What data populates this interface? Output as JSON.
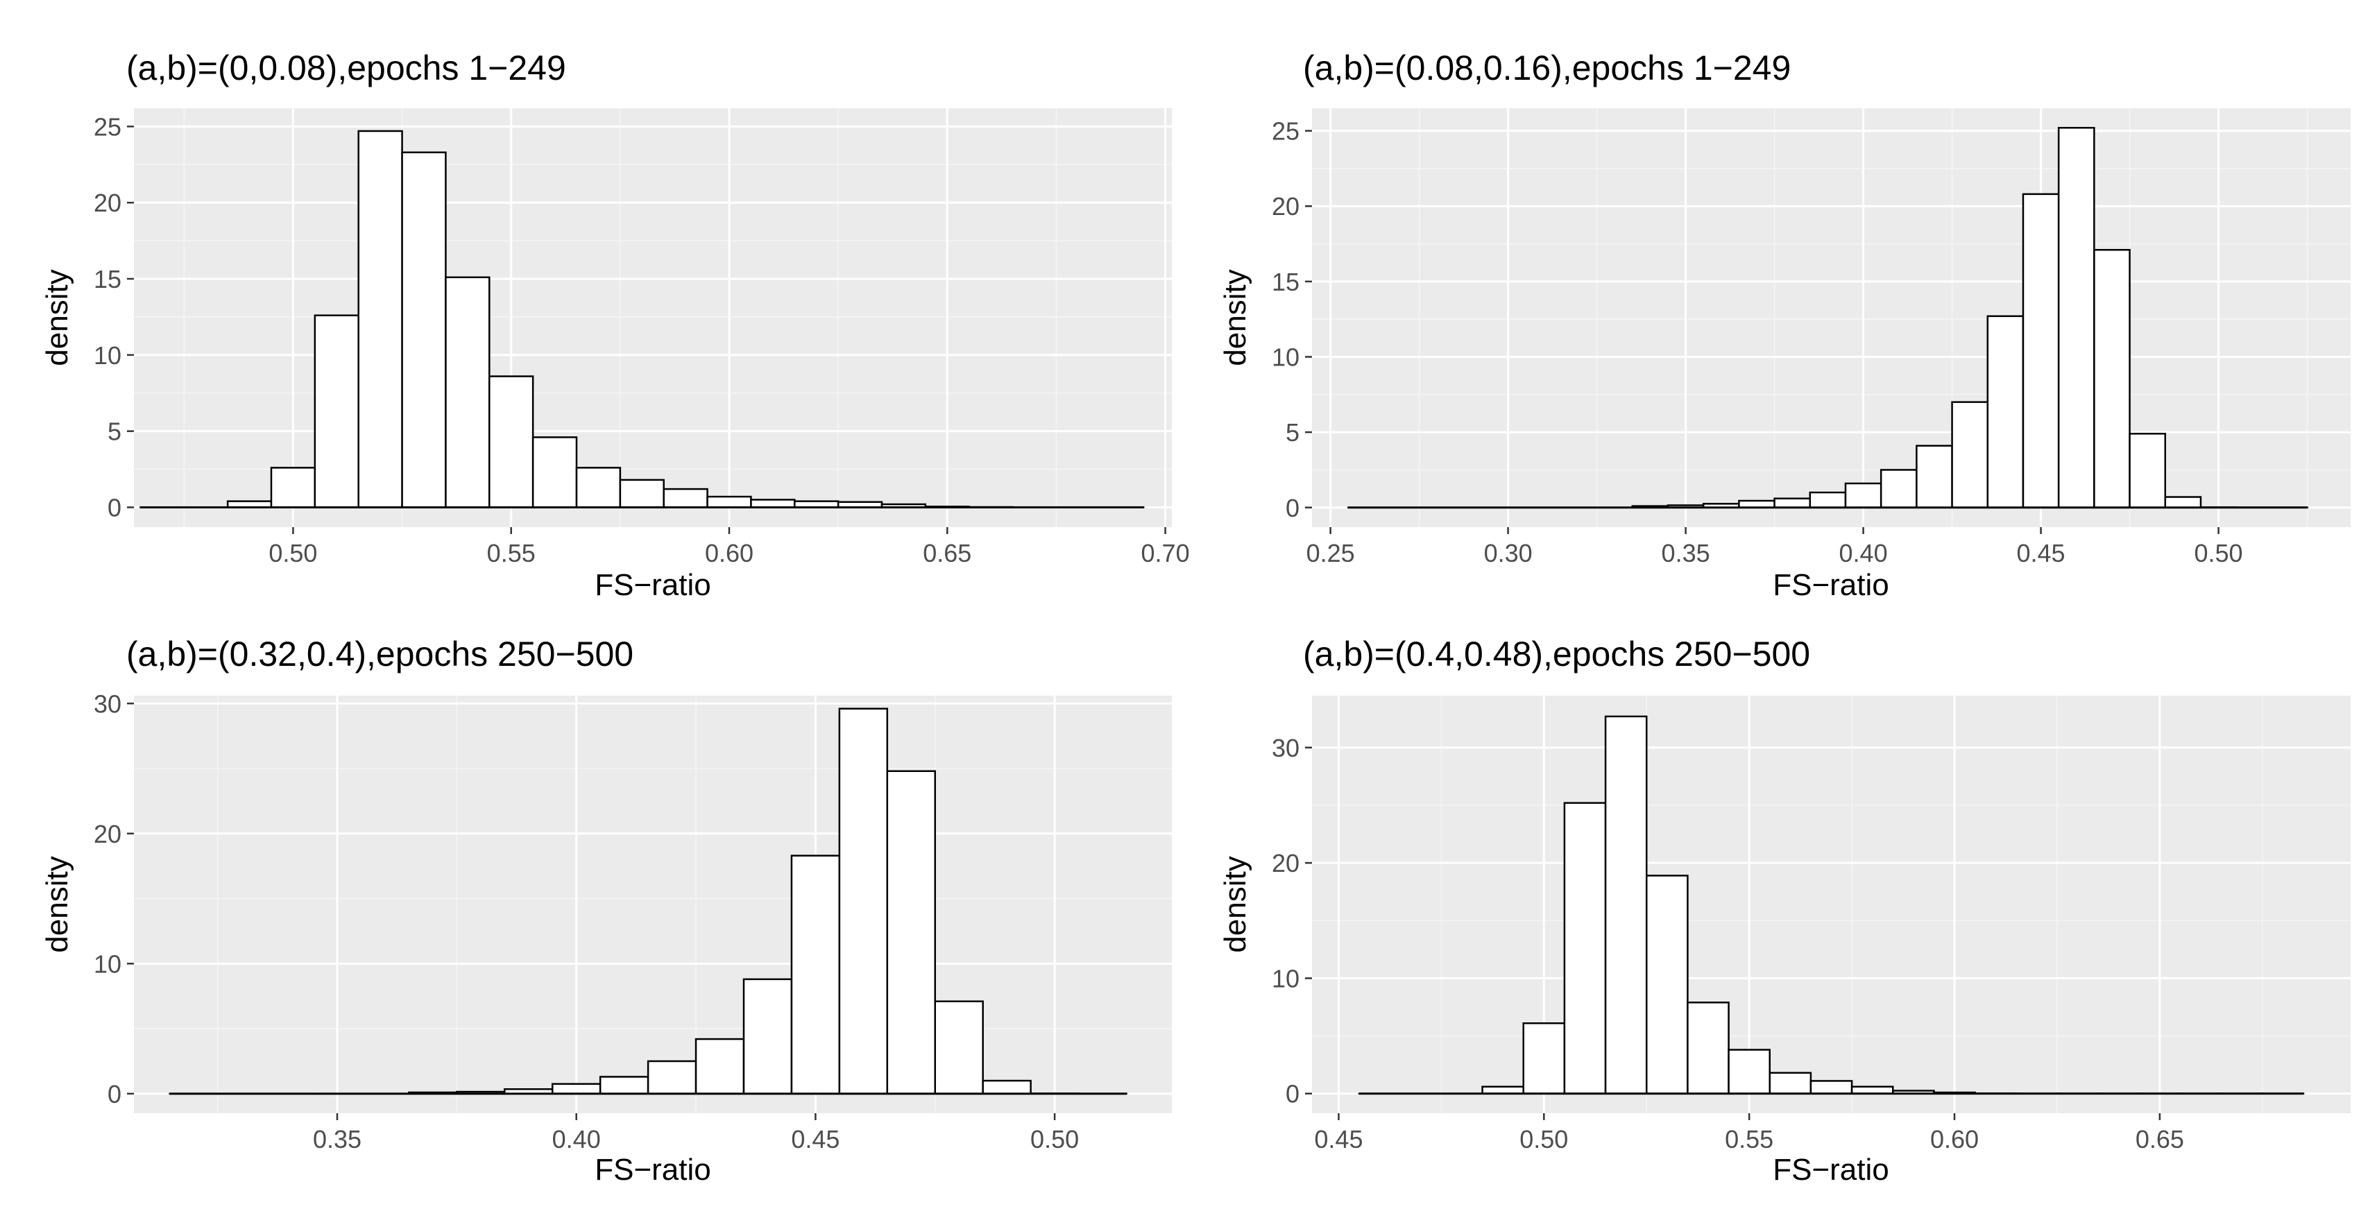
{
  "figure": {
    "colors": {
      "panel_bg": "#ebebeb",
      "grid_major": "#ffffff",
      "grid_minor": "#f5f5f5",
      "bar_fill": "#ffffff",
      "bar_stroke": "#000000",
      "tick_text": "#4d4d4d"
    }
  },
  "chart_data": [
    {
      "type": "bar",
      "subtype": "histogram",
      "title": "(a,b)=(0,0.08),epochs 1−249",
      "xlabel": "FS−ratio",
      "ylabel": "density",
      "xlim": [
        0.4635,
        0.7015
      ],
      "ylim": [
        -1.3,
        26.2
      ],
      "xticks": [
        0.5,
        0.55,
        0.6,
        0.65,
        0.7
      ],
      "xtick_labels": [
        "0.50",
        "0.55",
        "0.60",
        "0.65",
        "0.70"
      ],
      "yticks": [
        0,
        5,
        10,
        15,
        20,
        25
      ],
      "ytick_labels": [
        "0",
        "5",
        "10",
        "15",
        "20",
        "25"
      ],
      "bin_edges": [
        0.465,
        0.475,
        0.485,
        0.495,
        0.505,
        0.515,
        0.525,
        0.535,
        0.545,
        0.555,
        0.565,
        0.575,
        0.585,
        0.595,
        0.605,
        0.615,
        0.625,
        0.635,
        0.645,
        0.655,
        0.665,
        0.675,
        0.685,
        0.695
      ],
      "values": [
        0,
        0,
        0.4,
        2.6,
        12.6,
        24.7,
        23.3,
        15.1,
        8.6,
        4.6,
        2.6,
        1.8,
        1.2,
        0.7,
        0.5,
        0.4,
        0.35,
        0.2,
        0.05,
        0.02,
        0.01,
        0.01,
        0.01
      ],
      "grid": true,
      "legend": "none"
    },
    {
      "type": "bar",
      "subtype": "histogram",
      "title": "(a,b)=(0.08,0.16),epochs 1−249",
      "xlabel": "FS−ratio",
      "ylabel": "density",
      "xlim": [
        0.2448,
        0.5372
      ],
      "ylim": [
        -1.3,
        26.5
      ],
      "xticks": [
        0.25,
        0.3,
        0.35,
        0.4,
        0.45,
        0.5
      ],
      "xtick_labels": [
        "0.25",
        "0.30",
        "0.35",
        "0.40",
        "0.45",
        "0.50"
      ],
      "yticks": [
        0,
        5,
        10,
        15,
        20,
        25
      ],
      "ytick_labels": [
        "0",
        "5",
        "10",
        "15",
        "20",
        "25"
      ],
      "bin_edges": [
        0.255,
        0.265,
        0.275,
        0.285,
        0.295,
        0.305,
        0.315,
        0.325,
        0.335,
        0.345,
        0.355,
        0.365,
        0.375,
        0.385,
        0.395,
        0.405,
        0.415,
        0.425,
        0.435,
        0.445,
        0.455,
        0.465,
        0.475,
        0.485,
        0.495,
        0.505,
        0.515,
        0.525
      ],
      "values": [
        0,
        0,
        0,
        0,
        0,
        0,
        0,
        0,
        0.1,
        0.15,
        0.25,
        0.45,
        0.6,
        1.0,
        1.6,
        2.5,
        4.1,
        7.0,
        12.7,
        20.8,
        25.2,
        17.1,
        4.9,
        0.7,
        0.02,
        0.01,
        0.01
      ],
      "grid": true,
      "legend": "none"
    },
    {
      "type": "bar",
      "subtype": "histogram",
      "title": "(a,b)=(0.32,0.4),epochs 250−500",
      "xlabel": "FS−ratio",
      "ylabel": "density",
      "xlim": [
        0.3075,
        0.5245
      ],
      "ylim": [
        -1.5,
        30.6
      ],
      "xticks": [
        0.35,
        0.4,
        0.45,
        0.5
      ],
      "xtick_labels": [
        "0.35",
        "0.40",
        "0.45",
        "0.50"
      ],
      "yticks": [
        0,
        10,
        20,
        30
      ],
      "ytick_labels": [
        "0",
        "10",
        "20",
        "30"
      ],
      "bin_edges": [
        0.315,
        0.325,
        0.335,
        0.345,
        0.355,
        0.365,
        0.375,
        0.385,
        0.395,
        0.405,
        0.415,
        0.425,
        0.435,
        0.445,
        0.455,
        0.465,
        0.475,
        0.485,
        0.495,
        0.505,
        0.515
      ],
      "values": [
        0,
        0,
        0,
        0,
        0,
        0.1,
        0.15,
        0.35,
        0.75,
        1.3,
        2.5,
        4.2,
        8.8,
        18.3,
        29.6,
        24.8,
        7.1,
        1.0,
        0.02,
        0.01
      ],
      "grid": true,
      "legend": "none"
    },
    {
      "type": "bar",
      "subtype": "histogram",
      "title": "(a,b)=(0.4,0.48),epochs 250−500",
      "xlabel": "FS−ratio",
      "ylabel": "density",
      "xlim": [
        0.4435,
        0.6965
      ],
      "ylim": [
        -1.7,
        34.5
      ],
      "xticks": [
        0.45,
        0.5,
        0.55,
        0.6,
        0.65
      ],
      "xtick_labels": [
        "0.45",
        "0.50",
        "0.55",
        "0.60",
        "0.65"
      ],
      "yticks": [
        0,
        10,
        20,
        30
      ],
      "ytick_labels": [
        "0",
        "10",
        "20",
        "30"
      ],
      "bin_edges": [
        0.455,
        0.465,
        0.475,
        0.485,
        0.495,
        0.505,
        0.515,
        0.525,
        0.535,
        0.545,
        0.555,
        0.565,
        0.575,
        0.585,
        0.595,
        0.605,
        0.615,
        0.625,
        0.635,
        0.645,
        0.655,
        0.665,
        0.675,
        0.685
      ],
      "values": [
        0,
        0,
        0,
        0.6,
        6.1,
        25.2,
        32.7,
        18.9,
        7.9,
        3.8,
        1.8,
        1.1,
        0.6,
        0.25,
        0.1,
        0.02,
        0.01,
        0.01,
        0.01,
        0.01,
        0.01,
        0.01,
        0.01
      ],
      "grid": true,
      "legend": "none"
    }
  ]
}
